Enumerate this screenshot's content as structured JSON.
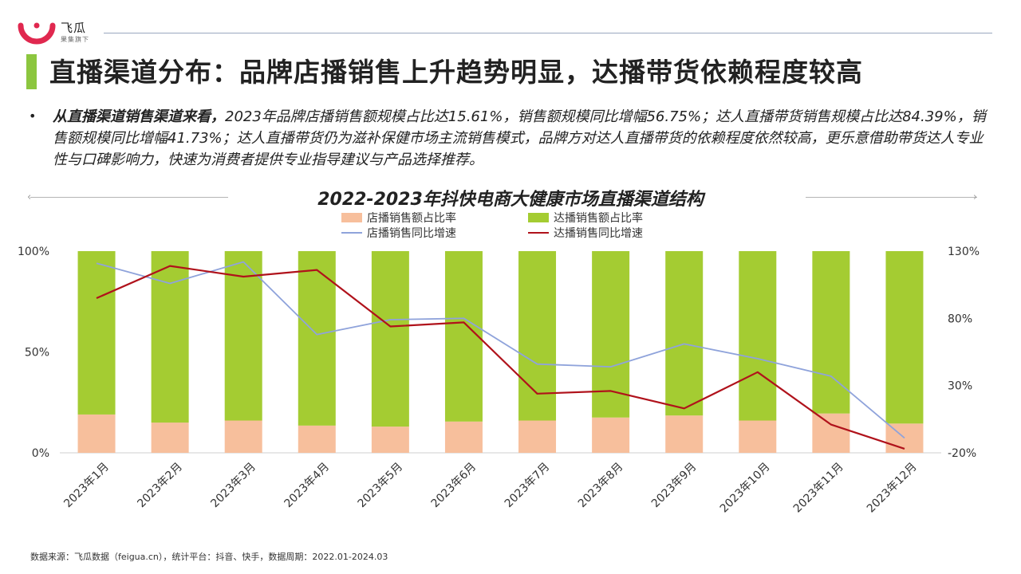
{
  "brand": {
    "name": "飞瓜",
    "tagline": "果集旗下"
  },
  "title": "直播渠道分布：品牌店播销售上升趋势明显，达播带货依赖程度较高",
  "bullet": {
    "lead": "从直播渠道销售渠道来看，",
    "text": "2023年品牌店播销售额规模占比达15.61%，销售额规模同比增幅56.75%；达人直播带货销售规模占比达84.39%，销售额规模同比增幅41.73%；达人直播带货仍为滋补保健市场主流销售模式，品牌方对达人直播带货的依赖程度依然较高，更乐意借助带货达人专业性与口碑影响力，快速为消费者提供专业指导建议与产品选择推荐。"
  },
  "source": "数据来源：飞瓜数据（feigua.cn），统计平台：抖音、快手，数据周期：2022.01-2024.03",
  "colors": {
    "store_bar": "#f7bf9c",
    "daren_bar": "#a4cc32",
    "store_line": "#8fa3db",
    "daren_line": "#b0121b",
    "accent": "#8cc63f",
    "logo": "#e0284f"
  },
  "chart_data": {
    "type": "bar",
    "stacked": true,
    "title": "2022-2023年抖快电商大健康市场直播渠道结构",
    "categories": [
      "2023年1月",
      "2023年2月",
      "2023年3月",
      "2023年4月",
      "2023年5月",
      "2023年6月",
      "2023年7月",
      "2023年8月",
      "2023年9月",
      "2023年10月",
      "2023年11月",
      "2023年12月"
    ],
    "series": [
      {
        "name": "店播销售额占比率",
        "kind": "bar",
        "axis": "left",
        "color": "#f7bf9c",
        "values": [
          19,
          15,
          16,
          13.5,
          13,
          15.5,
          16,
          17.5,
          18.5,
          16,
          19.5,
          14.5
        ]
      },
      {
        "name": "达播销售额占比率",
        "kind": "bar",
        "axis": "left",
        "color": "#a4cc32",
        "values": [
          81,
          85,
          84,
          86.5,
          87,
          84.5,
          84,
          82.5,
          81.5,
          84,
          80.5,
          85.5
        ]
      },
      {
        "name": "店播销售同比增速",
        "kind": "line",
        "axis": "right",
        "color": "#8fa3db",
        "values": [
          121,
          106,
          122,
          68,
          79,
          80,
          46,
          44,
          61,
          50,
          37,
          -9
        ]
      },
      {
        "name": "达播销售同比增速",
        "kind": "line",
        "axis": "right",
        "color": "#b0121b",
        "values": [
          95,
          119,
          111,
          116,
          74,
          77,
          24,
          26,
          13,
          40,
          1,
          -17
        ]
      }
    ],
    "left_axis": {
      "ticks": [
        "0%",
        "50%",
        "100%"
      ],
      "values": [
        0,
        50,
        100
      ],
      "ylim": [
        0,
        100
      ]
    },
    "right_axis": {
      "ticks": [
        "-20%",
        "30%",
        "80%",
        "130%"
      ],
      "values": [
        -20,
        30,
        80,
        130
      ],
      "ylim": [
        -20,
        130
      ]
    },
    "legend_position": "top-center",
    "grid": false
  }
}
